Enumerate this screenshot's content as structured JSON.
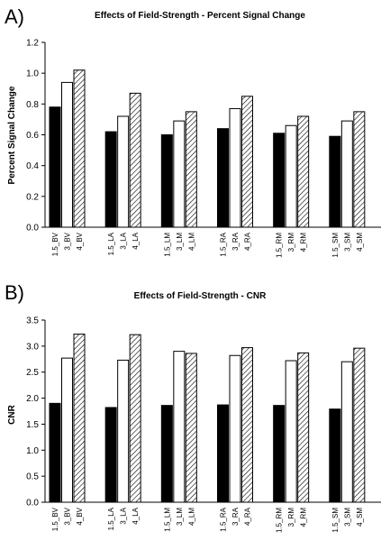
{
  "chart_data": [
    {
      "panel": "A)",
      "type": "bar",
      "title": "Effects of Field-Strength - Percent Signal Change",
      "ylabel": "Percent Signal Change",
      "xlabel": "",
      "ylim": [
        0,
        1.2
      ],
      "yticks": [
        "0.0",
        "0.2",
        "0.4",
        "0.6",
        "0.8",
        "1.0",
        "1.2"
      ],
      "grid": false,
      "categories": [
        "1.5_BV",
        "3_BV",
        "4_BV",
        "1.5_LA",
        "3_LA",
        "4_LA",
        "1.5_LM",
        "3_LM",
        "4_LM",
        "1.5_RA",
        "3_RA",
        "4_RA",
        "1.5_RM",
        "3_RM",
        "4_RM",
        "1.5_SM",
        "3_SM",
        "4_SM"
      ],
      "values": [
        0.78,
        0.94,
        1.02,
        0.62,
        0.72,
        0.87,
        0.6,
        0.69,
        0.75,
        0.64,
        0.77,
        0.85,
        0.61,
        0.66,
        0.72,
        0.59,
        0.69,
        0.75
      ],
      "fills": [
        "black",
        "white",
        "hatched"
      ]
    },
    {
      "panel": "B)",
      "type": "bar",
      "title": "Effects of Field-Strength - CNR",
      "ylabel": "CNR",
      "xlabel": "",
      "ylim": [
        0,
        3.5
      ],
      "yticks": [
        "0.0",
        "0.5",
        "1.0",
        "1.5",
        "2.0",
        "2.5",
        "3.0",
        "3.5"
      ],
      "grid": false,
      "categories": [
        "1.5_BV",
        "3_BV",
        "4_BV",
        "1.5_LA",
        "3_LA",
        "4_LA",
        "1.5_LM",
        "3_LM",
        "4_LM",
        "1.5_RA",
        "3_RA",
        "4_RA",
        "1.5_RM",
        "3_RM",
        "4_RM",
        "1.5_SM",
        "3_SM",
        "4_SM"
      ],
      "values": [
        1.9,
        2.77,
        3.23,
        1.82,
        2.73,
        3.22,
        1.86,
        2.9,
        2.86,
        1.87,
        2.82,
        2.97,
        1.86,
        2.72,
        2.87,
        1.79,
        2.7,
        2.96
      ],
      "fills": [
        "black",
        "white",
        "hatched"
      ]
    }
  ]
}
